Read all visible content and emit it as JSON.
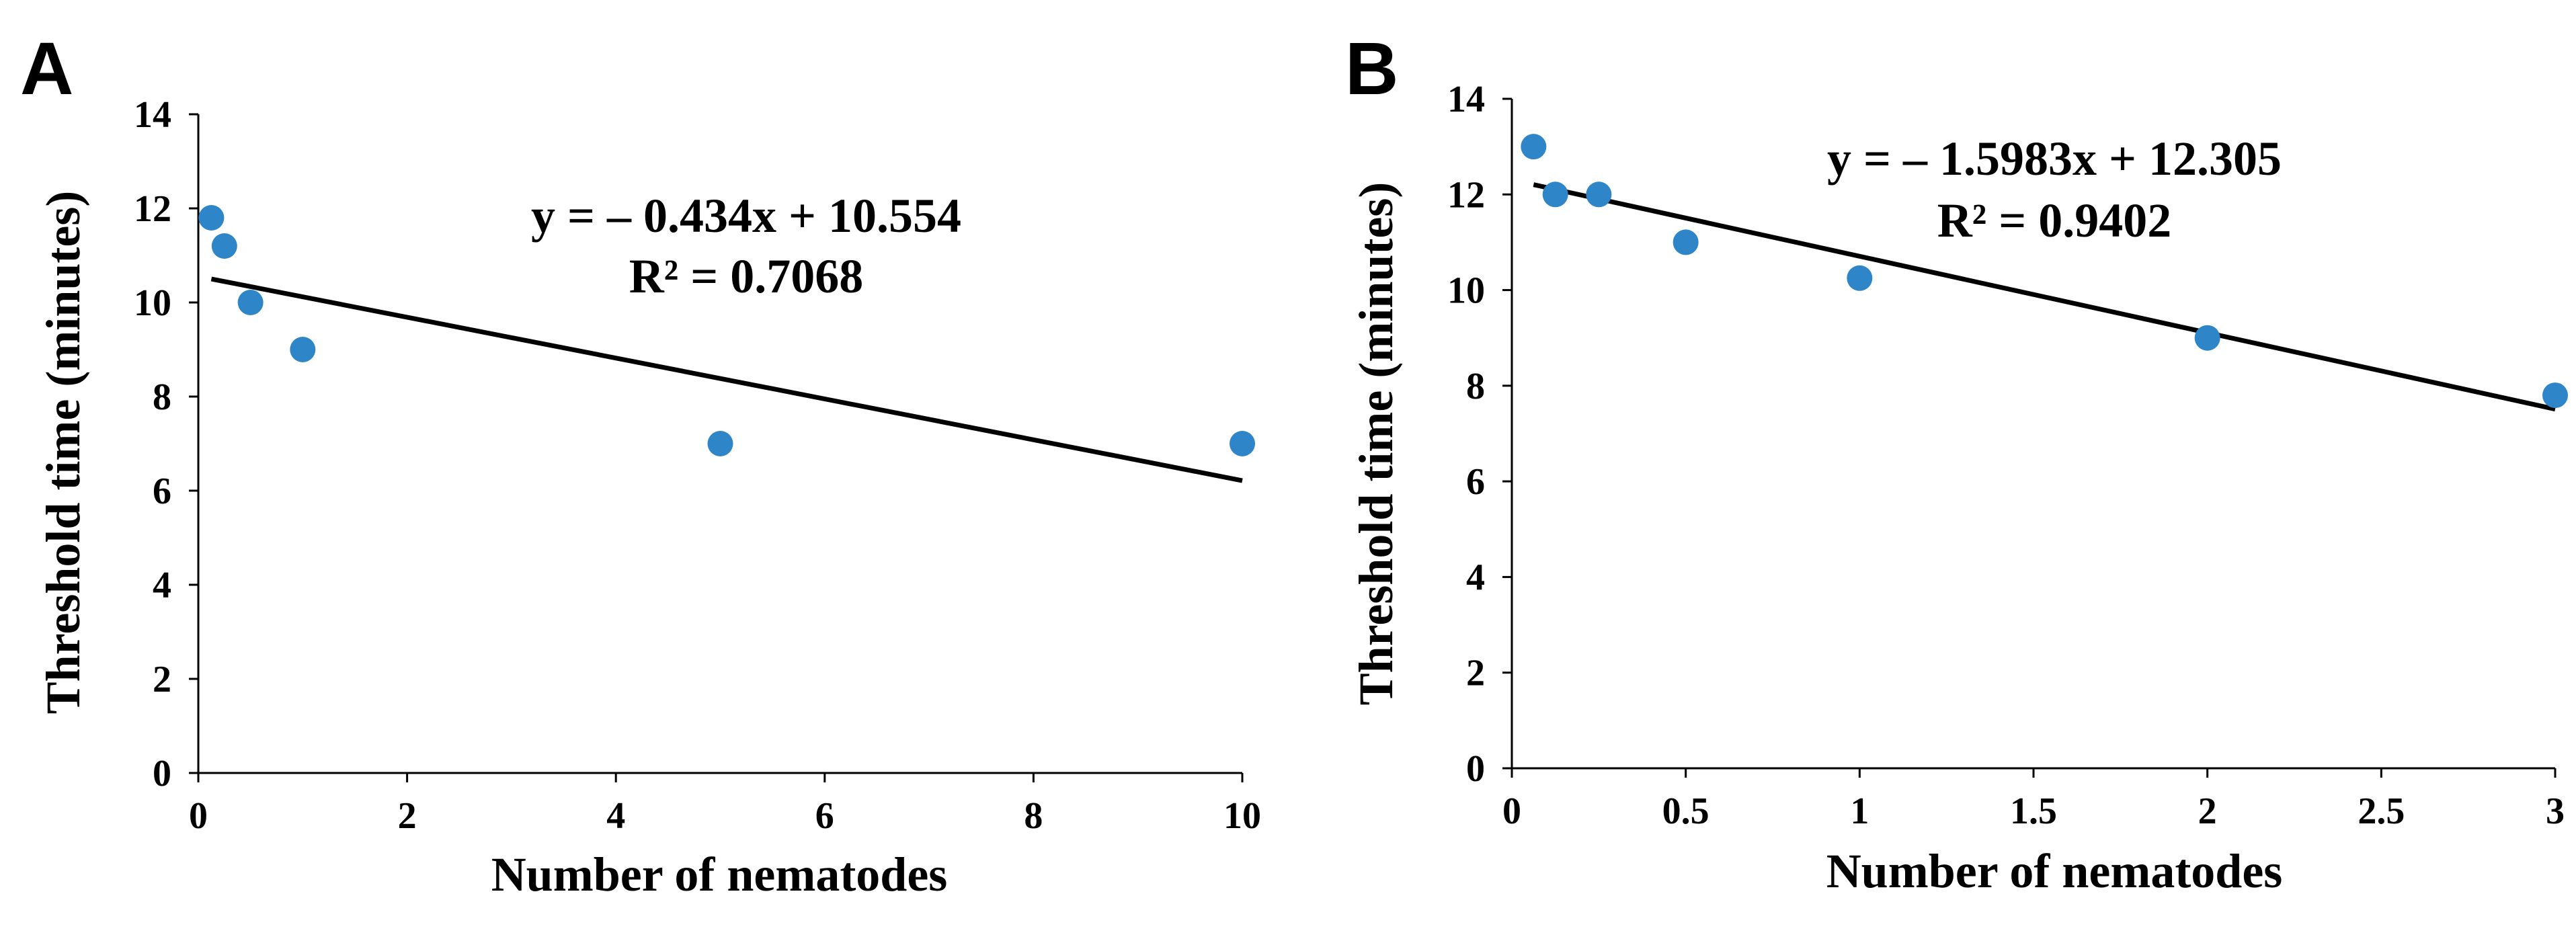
{
  "chart_data": [
    {
      "panel": "A",
      "type": "scatter",
      "title": "",
      "xlabel": "Number of nematodes",
      "ylabel": "Threshold time (minutes)",
      "xlim": [
        0,
        10
      ],
      "ylim": [
        0,
        14
      ],
      "xticks": [
        0,
        2,
        4,
        6,
        8,
        10
      ],
      "xtick_labels": [
        "0",
        "2",
        "4",
        "6",
        "8",
        "10"
      ],
      "yticks": [
        0,
        2,
        4,
        6,
        8,
        10,
        12,
        14
      ],
      "ytick_labels": [
        "0",
        "2",
        "4",
        "6",
        "8",
        "10",
        "12",
        "14"
      ],
      "grid": false,
      "marker_color": "#2e86c8",
      "points": [
        {
          "x": 0.125,
          "y": 11.8
        },
        {
          "x": 0.25,
          "y": 11.2
        },
        {
          "x": 0.5,
          "y": 10.0
        },
        {
          "x": 1,
          "y": 9.0
        },
        {
          "x": 5,
          "y": 7.0
        },
        {
          "x": 10,
          "y": 7.0
        }
      ],
      "trendline": {
        "slope": -0.434,
        "intercept": 10.554,
        "x_from": 0.125,
        "x_to": 10
      },
      "equation": "y = – 0.434x + 10.554",
      "r_squared": "R² = 0.7068"
    },
    {
      "panel": "B",
      "type": "scatter",
      "title": "",
      "xlabel": "Number of nematodes",
      "ylabel": "Threshold time (minutes)",
      "xlim": [
        0,
        3
      ],
      "ylim": [
        0,
        14
      ],
      "xticks": [
        0,
        0.5,
        1,
        1.5,
        2,
        2.5,
        3
      ],
      "xtick_labels": [
        "0",
        "0.5",
        "1",
        "1.5",
        "2",
        "2.5",
        "3"
      ],
      "yticks": [
        0,
        2,
        4,
        6,
        8,
        10,
        12,
        14
      ],
      "ytick_labels": [
        "0",
        "2",
        "4",
        "6",
        "8",
        "10",
        "12",
        "14"
      ],
      "grid": false,
      "marker_color": "#2e86c8",
      "points": [
        {
          "x": 0.0625,
          "y": 13.0
        },
        {
          "x": 0.125,
          "y": 12.0
        },
        {
          "x": 0.25,
          "y": 12.0
        },
        {
          "x": 0.5,
          "y": 11.0
        },
        {
          "x": 1,
          "y": 10.25
        },
        {
          "x": 2,
          "y": 9.0
        },
        {
          "x": 3,
          "y": 7.8
        }
      ],
      "trendline": {
        "slope": -1.5983,
        "intercept": 12.305,
        "x_from": 0.0625,
        "x_to": 3
      },
      "equation": "y = – 1.5983x + 12.305",
      "r_squared": "R² = 0.9402"
    }
  ]
}
